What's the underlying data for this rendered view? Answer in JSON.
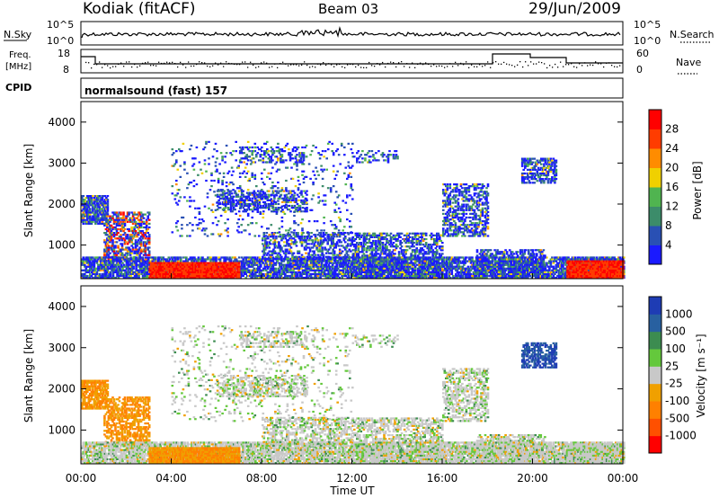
{
  "header": {
    "station": "Kodiak (fitACF)",
    "beam": "Beam 03",
    "date": "29/Jun/2009"
  },
  "top_panels": {
    "nsky_label": "N.Sky",
    "nsky_ticks": [
      "10^5",
      "10^0"
    ],
    "nsearch_label": "N.Search",
    "nsearch_ticks": [
      "10^5",
      "10^0"
    ],
    "freq_label_1": "Freq.",
    "freq_label_2": "[MHz]",
    "freq_ticks": [
      "18",
      "8"
    ],
    "nave_label": "Nave",
    "nave_ticks": [
      "60",
      "0"
    ],
    "cpid_label": "CPID",
    "cpid_text": "normalsound (fast) 157"
  },
  "chart_data": [
    {
      "type": "heatmap",
      "name": "power",
      "ylabel": "Slant Range [km]",
      "xlabel": "",
      "ylim": [
        180,
        4500
      ],
      "xlim": [
        0,
        24
      ],
      "yticks": [
        "1000",
        "2000",
        "3000",
        "4000"
      ],
      "colorbar_label": "Power [dB]",
      "colorbar_ticks": [
        "4",
        "8",
        "12",
        "16",
        "20",
        "24",
        "28"
      ],
      "colorbar_colors": [
        "#1a1aff",
        "#2950b4",
        "#3c8c6a",
        "#50b450",
        "#f0d000",
        "#ff8c00",
        "#ff3c00",
        "#ff0000"
      ]
    },
    {
      "type": "heatmap",
      "name": "velocity",
      "ylabel": "Slant Range [km]",
      "xlabel": "Time UT",
      "ylim": [
        180,
        4500
      ],
      "xlim": [
        0,
        24
      ],
      "yticks": [
        "1000",
        "2000",
        "3000",
        "4000"
      ],
      "xticks": [
        "00:00",
        "04:00",
        "08:00",
        "12:00",
        "16:00",
        "20:00",
        "00:00"
      ],
      "colorbar_label": "Velocity [m s⁻¹]",
      "colorbar_ticks": [
        "1000",
        "500",
        "100",
        "25",
        "-25",
        "-100",
        "-500",
        "-1000"
      ],
      "colorbar_colors": [
        "#1e3cb4",
        "#2860a0",
        "#3c8c50",
        "#64c83c",
        "#c8c8c8",
        "#f0a000",
        "#ff8000",
        "#ff5000",
        "#ff0000"
      ]
    }
  ]
}
